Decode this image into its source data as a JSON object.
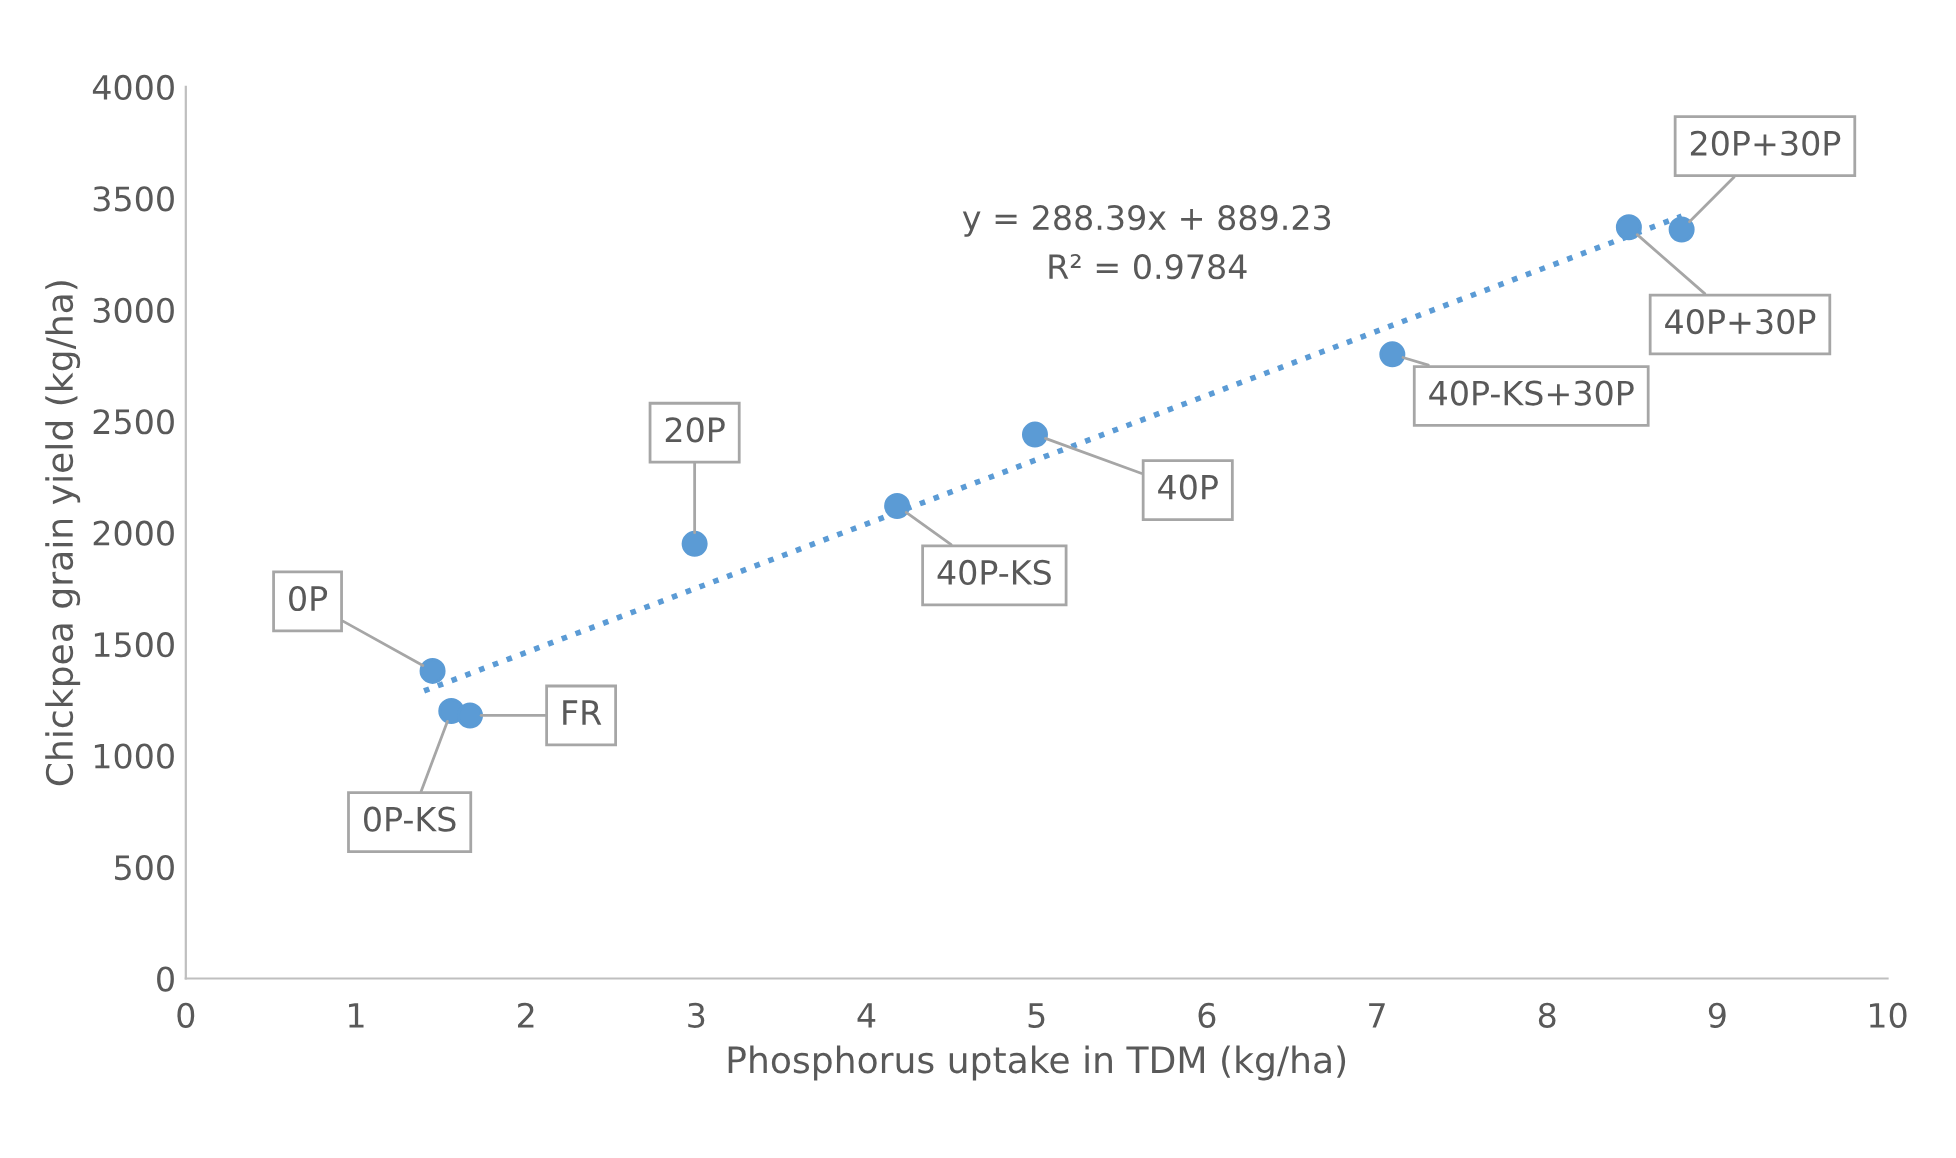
{
  "chart_data": {
    "type": "scatter",
    "xlabel": "Phosphorus uptake in TDM (kg/ha)",
    "ylabel": "Chickpea grain yield (kg/ha)",
    "xlim": [
      0,
      10
    ],
    "xticks": [
      0,
      1,
      2,
      3,
      4,
      5,
      6,
      7,
      8,
      9,
      10
    ],
    "ylim": [
      0,
      4000
    ],
    "yticks": [
      0,
      500,
      1000,
      1500,
      2000,
      2500,
      3000,
      3500,
      4000
    ],
    "grid": false,
    "legend": false,
    "series": [
      {
        "marker": "circle",
        "color": "#5b9bd5",
        "x": [
          1.45,
          1.56,
          1.67,
          2.99,
          4.18,
          4.99,
          7.09,
          8.48,
          8.79
        ],
        "values": [
          1380,
          1200,
          1180,
          1950,
          2120,
          2440,
          2800,
          3370,
          3360
        ]
      },
      {
        "type": "line",
        "color": "#5b9bd5",
        "line_style": "dotted",
        "x": [
          1.4,
          8.79
        ],
        "values": [
          1290,
          3420
        ]
      }
    ],
    "annotations": [
      {
        "text": "0P",
        "x": 1.45,
        "y": 1380
      },
      {
        "text": "0P-KS",
        "x": 1.56,
        "y": 1200
      },
      {
        "text": "FR",
        "x": 1.67,
        "y": 1180
      },
      {
        "text": "20P",
        "x": 2.99,
        "y": 1950
      },
      {
        "text": "40P-KS",
        "x": 4.18,
        "y": 2120
      },
      {
        "text": "40P",
        "x": 4.99,
        "y": 2440
      },
      {
        "text": "40P-KS+30P",
        "x": 7.09,
        "y": 2800
      },
      {
        "text": "40P+30P",
        "x": 8.48,
        "y": 3370
      },
      {
        "text": "20P+30P",
        "x": 8.79,
        "y": 3360
      },
      "y = 288.39x + 889.23",
      "R² = 0.9784"
    ]
  }
}
